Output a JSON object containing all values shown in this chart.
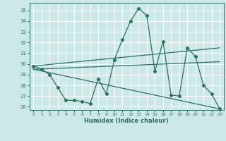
{
  "title": "",
  "xlabel": "Humidex (Indice chaleur)",
  "xlim": [
    -0.5,
    23.5
  ],
  "ylim": [
    25.7,
    35.7
  ],
  "yticks": [
    26,
    27,
    28,
    29,
    30,
    31,
    32,
    33,
    34,
    35
  ],
  "xticks": [
    0,
    1,
    2,
    3,
    4,
    5,
    6,
    7,
    8,
    9,
    10,
    11,
    12,
    13,
    14,
    15,
    16,
    17,
    18,
    19,
    20,
    21,
    22,
    23
  ],
  "bg_color": "#cce8e8",
  "grid_color": "#ffffff",
  "line_color": "#2e7060",
  "line1": {
    "x": [
      0,
      1,
      2,
      3,
      4,
      5,
      6,
      7,
      8,
      9,
      10,
      11,
      12,
      13,
      14,
      15,
      16,
      17,
      18,
      19,
      20,
      21,
      22,
      23
    ],
    "y": [
      29.8,
      29.5,
      29.0,
      27.8,
      26.6,
      26.6,
      26.5,
      26.3,
      28.6,
      27.2,
      30.4,
      32.3,
      34.0,
      35.2,
      34.5,
      29.3,
      32.1,
      27.1,
      27.0,
      31.5,
      30.7,
      28.0,
      27.2,
      25.8
    ]
  },
  "line_upper": {
    "x": [
      0,
      23
    ],
    "y": [
      29.8,
      31.5
    ]
  },
  "line_mid": {
    "x": [
      0,
      23
    ],
    "y": [
      29.5,
      30.2
    ]
  },
  "line_lower": {
    "x": [
      0,
      23
    ],
    "y": [
      29.5,
      25.8
    ]
  }
}
